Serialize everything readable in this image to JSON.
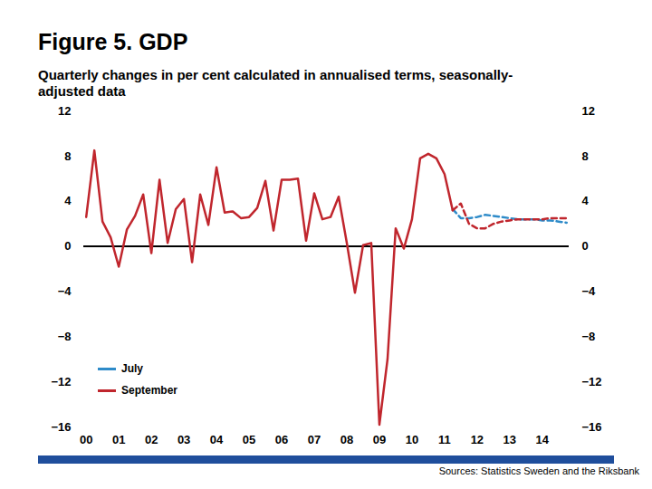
{
  "chart_data": {
    "type": "line",
    "title": "Figure 5. GDP",
    "subtitle": "Quarterly changes in per cent calculated in annualised terms, seasonally-adjusted data",
    "source": "Sources: Statistics Sweden and the Riksbank",
    "categories": [
      "00",
      null,
      null,
      null,
      "01",
      null,
      null,
      null,
      "02",
      null,
      null,
      null,
      "03",
      null,
      null,
      null,
      "04",
      null,
      null,
      null,
      "05",
      null,
      null,
      null,
      "06",
      null,
      null,
      null,
      "07",
      null,
      null,
      null,
      "08",
      null,
      null,
      null,
      "09",
      null,
      null,
      null,
      "10",
      null,
      null,
      null,
      "11",
      null,
      null,
      null,
      "12",
      null,
      null,
      null,
      "13",
      null,
      null,
      null,
      "14",
      null,
      null,
      null
    ],
    "series": [
      {
        "name": "July",
        "color": "#2e8bc9",
        "line_style": "dashed",
        "values": [
          null,
          null,
          null,
          null,
          null,
          null,
          null,
          null,
          null,
          null,
          null,
          null,
          null,
          null,
          null,
          null,
          null,
          null,
          null,
          null,
          null,
          null,
          null,
          null,
          null,
          null,
          null,
          null,
          null,
          null,
          null,
          null,
          null,
          null,
          null,
          null,
          null,
          null,
          null,
          null,
          null,
          null,
          null,
          null,
          null,
          3.3,
          2.5,
          2.5,
          2.6,
          2.8,
          2.7,
          2.6,
          2.5,
          2.4,
          2.4,
          2.4,
          2.3,
          2.3,
          2.2,
          2.1
        ]
      },
      {
        "name": "September",
        "color": "#c0262d",
        "line_style": "solid",
        "values": [
          2.6,
          8.5,
          2.2,
          0.8,
          -1.8,
          1.5,
          2.7,
          4.6,
          -0.6,
          5.9,
          0.3,
          3.3,
          4.2,
          -1.4,
          4.6,
          1.9,
          7.0,
          3.0,
          3.1,
          2.5,
          2.6,
          3.4,
          5.8,
          1.4,
          5.9,
          5.9,
          6.0,
          0.5,
          4.7,
          2.4,
          2.6,
          4.4,
          0.3,
          -4.1,
          0.1,
          0.3,
          -15.8,
          -10.0,
          1.6,
          -0.2,
          2.4,
          7.8,
          8.2,
          7.8,
          6.4,
          3.2,
          null,
          null,
          null,
          null,
          null,
          null,
          null,
          null,
          null,
          null,
          null,
          null,
          null,
          null
        ]
      },
      {
        "name": "September",
        "color": "#c0262d",
        "line_style": "dashed",
        "values": [
          null,
          null,
          null,
          null,
          null,
          null,
          null,
          null,
          null,
          null,
          null,
          null,
          null,
          null,
          null,
          null,
          null,
          null,
          null,
          null,
          null,
          null,
          null,
          null,
          null,
          null,
          null,
          null,
          null,
          null,
          null,
          null,
          null,
          null,
          null,
          null,
          null,
          null,
          null,
          null,
          null,
          null,
          null,
          null,
          null,
          3.2,
          3.8,
          2.0,
          1.6,
          1.6,
          2.0,
          2.2,
          2.3,
          2.4,
          2.4,
          2.4,
          2.4,
          2.5,
          2.5,
          2.5
        ]
      }
    ],
    "ylim": [
      -16,
      12
    ],
    "yticks": [
      -16,
      -12,
      -8,
      -4,
      0,
      4,
      8,
      12
    ],
    "grid": false,
    "legend": "lower left"
  }
}
